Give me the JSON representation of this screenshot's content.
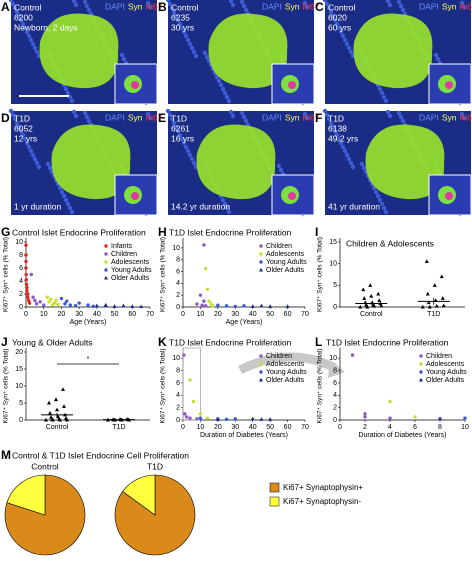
{
  "stains": [
    "DAPI",
    "Syn",
    "Ki67"
  ],
  "panels": [
    {
      "letter": "A",
      "lines": [
        "Control",
        "6200",
        "Newborn, 2 days"
      ]
    },
    {
      "letter": "B",
      "lines": [
        "Control",
        "6235",
        "30 yrs"
      ]
    },
    {
      "letter": "C",
      "lines": [
        "Control",
        "6020",
        "60 yrs"
      ]
    },
    {
      "letter": "D",
      "lines": [
        "T1D",
        "6052",
        "12 yrs"
      ],
      "footer": "1 yr duration"
    },
    {
      "letter": "E",
      "lines": [
        "T1D",
        "6261",
        "16 yrs"
      ],
      "footer": "14.2 yr duration"
    },
    {
      "letter": "F",
      "lines": [
        "T1D",
        "6138",
        "49.2 yrs"
      ],
      "footer": "41 yr duration"
    }
  ],
  "chart_data": [
    {
      "type": "scatter",
      "panel": "G",
      "title": "Control Islet Endocrine Proliferation",
      "xlabel": "Age (Years)",
      "ylabel": "Ki67⁺ Syn⁺ cells (% Total)",
      "xlim": [
        0,
        70
      ],
      "xticks": [
        0,
        10,
        20,
        30,
        40,
        50,
        60,
        70
      ],
      "ylim": [
        0,
        10
      ],
      "yticks": [
        0,
        2,
        4,
        6,
        8,
        10
      ],
      "legend": "upper right",
      "series": [
        {
          "name": "Infants",
          "color": "#e0261b",
          "marker": "circle",
          "x": [
            0,
            0,
            0,
            0,
            0.1,
            0.2,
            0.3,
            0.5,
            0.5,
            1,
            1,
            1.5,
            2
          ],
          "values": [
            9.5,
            8,
            7,
            6,
            5,
            4.2,
            3.5,
            3,
            2.5,
            2,
            1.5,
            1,
            0.6
          ]
        },
        {
          "name": "Children",
          "color": "#8a5ac8",
          "marker": "circle",
          "x": [
            3,
            4,
            5,
            6,
            8,
            10
          ],
          "values": [
            5,
            1.5,
            1,
            0.5,
            0.8,
            0.3
          ]
        },
        {
          "name": "Adolescents",
          "color": "#c8e030",
          "marker": "circle",
          "x": [
            12,
            13,
            14,
            15,
            16,
            17,
            18
          ],
          "values": [
            1.5,
            0.8,
            1.2,
            0.3,
            0.6,
            1,
            0.4
          ]
        },
        {
          "name": "Young Adults",
          "color": "#3a5ad8",
          "marker": "circle",
          "x": [
            20,
            22,
            23,
            25,
            28,
            30,
            35,
            38
          ],
          "values": [
            1.3,
            0.5,
            0.9,
            0.3,
            0.2,
            0.6,
            0.3,
            0.1
          ]
        },
        {
          "name": "Older Adults",
          "color": "#1a2a8a",
          "marker": "triangle",
          "x": [
            40,
            45,
            50,
            55,
            60,
            65
          ],
          "values": [
            0.2,
            0.3,
            0.1,
            0.2,
            0.1,
            0.05
          ]
        }
      ]
    },
    {
      "type": "scatter",
      "panel": "H",
      "title": "T1D Islet Endocrine Proliferation",
      "xlabel": "Age (Years)",
      "ylabel": "Ki67⁺ Syn⁺ cells (% Total)",
      "xlim": [
        0,
        70
      ],
      "xticks": [
        0,
        10,
        20,
        30,
        40,
        50,
        60,
        70
      ],
      "ylim": [
        0,
        11
      ],
      "yticks": [
        0,
        2,
        4,
        6,
        8,
        10
      ],
      "legend": "upper right",
      "series": [
        {
          "name": "Children",
          "color": "#8a5ac8",
          "marker": "circle",
          "x": [
            8,
            10,
            11,
            12,
            12,
            13
          ],
          "values": [
            0.5,
            2,
            0.3,
            10.5,
            1,
            0.2
          ]
        },
        {
          "name": "Adolescents",
          "color": "#c8e030",
          "marker": "circle",
          "x": [
            13,
            14,
            15,
            16,
            17
          ],
          "values": [
            6.5,
            3,
            1,
            0.5,
            0.2
          ]
        },
        {
          "name": "Young Adults",
          "color": "#3a5ad8",
          "marker": "circle",
          "x": [
            20,
            25,
            30,
            35
          ],
          "values": [
            0.3,
            0.2,
            0.1,
            0.2
          ]
        },
        {
          "name": "Older Adults",
          "color": "#1a2a8a",
          "marker": "triangle",
          "x": [
            40,
            45,
            50,
            60
          ],
          "values": [
            0.1,
            0.2,
            0.1,
            0.1
          ]
        }
      ]
    },
    {
      "type": "strip",
      "panel": "I",
      "title": "Children & Adolescents",
      "ylabel": "Ki67⁺ Syn⁺ cells (% Total)",
      "categories": [
        "Control",
        "T1D"
      ],
      "ylim": [
        0,
        15
      ],
      "yticks": [
        0,
        5,
        10,
        15
      ],
      "values": [
        [
          0,
          0,
          0.2,
          0.3,
          0.5,
          0.5,
          0.8,
          1,
          1,
          1.5,
          2,
          2.5,
          3,
          4,
          5
        ],
        [
          0,
          0,
          0.2,
          0.3,
          1,
          1.5,
          2,
          3,
          5,
          7,
          10.5
        ]
      ],
      "means": [
        0.8,
        1.3
      ],
      "sems": [
        0.3,
        0.8
      ]
    },
    {
      "type": "strip",
      "panel": "J",
      "title": "Young & Older Adults",
      "ylabel": "Ki67⁺ Syn⁺ cells (% Total)",
      "annotation": "*",
      "categories": [
        "Control",
        "T1D"
      ],
      "ylim": [
        0,
        20
      ],
      "yticks": [
        0,
        5,
        10,
        15,
        20
      ],
      "values": [
        [
          0,
          0,
          0,
          0,
          0.2,
          0.3,
          0.5,
          0.8,
          1,
          1.5,
          2,
          3,
          4,
          5,
          6,
          9
        ],
        [
          0,
          0,
          0,
          0,
          0,
          0,
          0.1,
          0.1,
          0.2,
          0.2
        ]
      ],
      "means": [
        1.5,
        0.1
      ],
      "sems": [
        0.6,
        0.02
      ]
    },
    {
      "type": "scatter",
      "panel": "K",
      "title": "T1D Islet Endocrine Proliferation",
      "xlabel": "Duration of Diabetes (Years)",
      "ylabel": "Ki67⁺ Syn⁺ cells (% Total)",
      "xlim": [
        0,
        70
      ],
      "xticks": [
        0,
        10,
        20,
        30,
        40,
        50,
        60,
        70
      ],
      "ylim": [
        0,
        11
      ],
      "yticks": [
        0,
        2,
        4,
        6,
        8,
        10
      ],
      "legend": "upper right",
      "series": [
        {
          "name": "Children",
          "color": "#8a5ac8",
          "marker": "circle",
          "x": [
            0.5,
            1,
            2,
            4,
            8
          ],
          "values": [
            10.5,
            1,
            0.5,
            0.3,
            0.2
          ]
        },
        {
          "name": "Adolescents",
          "color": "#c8e030",
          "marker": "circle",
          "x": [
            4,
            6,
            10,
            14
          ],
          "values": [
            6.5,
            3,
            1,
            0.3
          ]
        },
        {
          "name": "Young Adults",
          "color": "#3a5ad8",
          "marker": "circle",
          "x": [
            10,
            20,
            25,
            30
          ],
          "values": [
            0.3,
            0.2,
            0.1,
            0.2
          ]
        },
        {
          "name": "Older Adults",
          "color": "#1a2a8a",
          "marker": "triangle",
          "x": [
            20,
            40,
            45,
            50
          ],
          "values": [
            0.1,
            0.2,
            0.1,
            0.1
          ]
        }
      ]
    },
    {
      "type": "scatter",
      "panel": "L",
      "title": "T1D Islet Endocrine Proliferation",
      "xlabel": "Duration of Diabetes (Years)",
      "ylabel": "Ki67⁺ Syn⁺ cells (% Total)",
      "xlim": [
        0,
        10
      ],
      "xticks": [
        0,
        2,
        4,
        6,
        8,
        10
      ],
      "ylim": [
        0,
        11
      ],
      "yticks": [
        0,
        2,
        4,
        6,
        8,
        10
      ],
      "legend": "upper right",
      "series": [
        {
          "name": "Children",
          "color": "#8a5ac8",
          "marker": "circle",
          "x": [
            1,
            2,
            2,
            4,
            8
          ],
          "values": [
            10.5,
            1,
            0.5,
            0.3,
            0.2
          ]
        },
        {
          "name": "Adolescents",
          "color": "#c8e030",
          "marker": "circle",
          "x": [
            4,
            6,
            10
          ],
          "values": [
            3,
            0.5,
            0.3
          ]
        },
        {
          "name": "Young Adults",
          "color": "#3a5ad8",
          "marker": "circle",
          "x": [
            10
          ],
          "values": [
            0.3
          ]
        },
        {
          "name": "Older Adults",
          "color": "#1a2a8a",
          "marker": "triangle",
          "x": [
            8
          ],
          "values": [
            0.2
          ]
        }
      ]
    },
    {
      "type": "pie",
      "panel": "M",
      "title": "Control & T1D Islet Endocrine Cell Proliferation",
      "categories": [
        "Ki67+ Synaptophysin+",
        "Ki67+ Synaptophysin-"
      ],
      "colors": [
        "#d98a1a",
        "#ffff40"
      ],
      "series": [
        {
          "name": "Control",
          "values": [
            80,
            20
          ]
        },
        {
          "name": "T1D",
          "values": [
            85,
            15
          ]
        }
      ]
    }
  ]
}
